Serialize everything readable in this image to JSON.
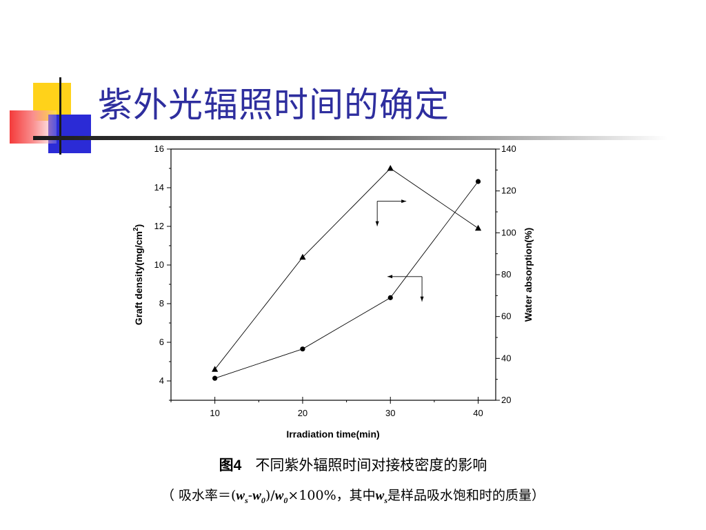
{
  "slide": {
    "title": "紫外光辐照时间的确定",
    "caption_label": "图4",
    "caption_text": "不同紫外辐照时间对接枝密度的影响",
    "formula_prefix": "（ 吸水率＝(",
    "formula_w": "w",
    "formula_s": "s",
    "formula_dash": "-",
    "formula_0": "0",
    "formula_mid": ")/",
    "formula_times": "×100%，其中",
    "formula_suffix": "是样品吸水饱和时的质量）"
  },
  "colors": {
    "title": "#2e2e9e",
    "deco_yellow": "#ffd21a",
    "deco_blue": "#2b2bd6",
    "deco_red": "#f43a3a",
    "series": "#000000"
  },
  "chart_data": {
    "type": "line",
    "x": [
      10,
      20,
      30,
      40
    ],
    "xlabel": "Irradiation time(min)",
    "ylabel": "Graft density(mg/cm",
    "ylabel_sup": "2",
    "ylabel_close": ")",
    "y2label": "Water absorption(%)",
    "xticks": [
      10,
      20,
      30,
      40
    ],
    "yticks": [
      4,
      6,
      8,
      10,
      12,
      14,
      16
    ],
    "y2ticks": [
      20,
      40,
      60,
      80,
      100,
      120,
      140
    ],
    "xlim": [
      5,
      42
    ],
    "ylim": [
      3,
      16
    ],
    "y2lim": [
      20,
      140
    ],
    "series": [
      {
        "axis": "left",
        "marker": "triangle",
        "values": [
          4.6,
          10.4,
          15.0,
          11.9
        ]
      },
      {
        "axis": "right",
        "marker": "circle",
        "values": [
          30.5,
          44.5,
          69,
          124.5
        ]
      }
    ],
    "annotations": [
      {
        "target": "triangle-series",
        "direction": "right",
        "x": 28.5,
        "y": 13.3
      },
      {
        "target": "circle-series",
        "direction": "left",
        "x": 33.6,
        "y": 9.4
      }
    ]
  }
}
